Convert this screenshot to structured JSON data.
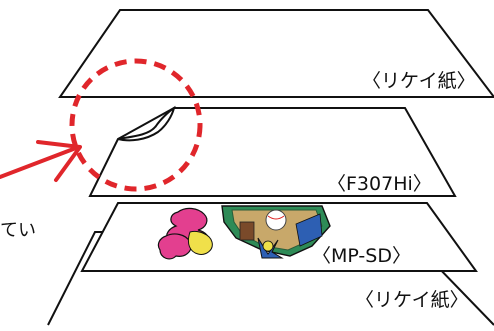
{
  "layers": {
    "top_sheet": {
      "label": "〈リケイ紙〉"
    },
    "film_sheet": {
      "label": "〈F307Hi〉"
    },
    "print_sheet": {
      "label": "〈MP-SD〉"
    },
    "bottom_sheet": {
      "label": "〈リケイ紙〉"
    }
  },
  "side_note": {
    "text": "てい"
  },
  "colors": {
    "outline": "#111111",
    "highlight_circle": "#e0262b",
    "arrow": "#e0262b"
  },
  "icons": {
    "highlight": "dashed-circle-icon",
    "pointer": "arrow-icon",
    "artwork": "sticker-artwork-icon",
    "corner": "peeled-corner-icon"
  }
}
